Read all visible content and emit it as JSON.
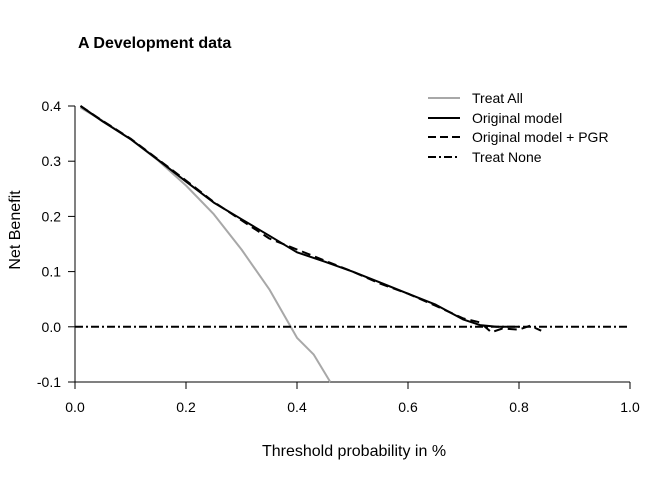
{
  "chart_data": {
    "type": "line",
    "title": "A Development data",
    "xlabel": "Threshold probability in %",
    "ylabel": "Net Benefit",
    "xlim": [
      0,
      1
    ],
    "ylim": [
      -0.1,
      0.4
    ],
    "x_ticks": [
      "0.0",
      "0.2",
      "0.4",
      "0.6",
      "0.8",
      "1.0"
    ],
    "y_ticks": [
      "-0.1",
      "0.0",
      "0.1",
      "0.2",
      "0.3",
      "0.4"
    ],
    "legend_position": "top-right",
    "series": [
      {
        "name": "Treat All",
        "color": "#a8a8a8",
        "dash": "solid",
        "x": [
          0.01,
          0.05,
          0.1,
          0.15,
          0.2,
          0.25,
          0.3,
          0.35,
          0.4,
          0.43,
          0.46
        ],
        "y": [
          0.397,
          0.373,
          0.34,
          0.301,
          0.256,
          0.204,
          0.14,
          0.068,
          -0.02,
          -0.05,
          -0.1
        ]
      },
      {
        "name": "Original model",
        "color": "#000000",
        "dash": "solid",
        "x": [
          0.01,
          0.05,
          0.1,
          0.15,
          0.2,
          0.25,
          0.3,
          0.35,
          0.4,
          0.45,
          0.5,
          0.55,
          0.6,
          0.65,
          0.7,
          0.73,
          0.76,
          0.8
        ],
        "y": [
          0.4,
          0.372,
          0.34,
          0.302,
          0.263,
          0.225,
          0.195,
          0.165,
          0.135,
          0.118,
          0.1,
          0.08,
          0.06,
          0.04,
          0.013,
          0.003,
          0.0,
          0.0
        ]
      },
      {
        "name": "Original model + PGR",
        "color": "#000000",
        "dash": "dashed",
        "x": [
          0.01,
          0.05,
          0.1,
          0.15,
          0.2,
          0.25,
          0.3,
          0.35,
          0.4,
          0.45,
          0.5,
          0.55,
          0.6,
          0.65,
          0.7,
          0.73,
          0.75,
          0.77,
          0.8,
          0.82,
          0.84
        ],
        "y": [
          0.4,
          0.373,
          0.341,
          0.303,
          0.265,
          0.226,
          0.193,
          0.16,
          0.14,
          0.12,
          0.1,
          0.078,
          0.06,
          0.038,
          0.015,
          0.008,
          -0.01,
          -0.003,
          -0.005,
          0.002,
          -0.007
        ]
      },
      {
        "name": "Treat None",
        "color": "#000000",
        "dash": "dashdot",
        "x": [
          0.0,
          1.0
        ],
        "y": [
          0.0,
          0.0
        ]
      }
    ]
  }
}
